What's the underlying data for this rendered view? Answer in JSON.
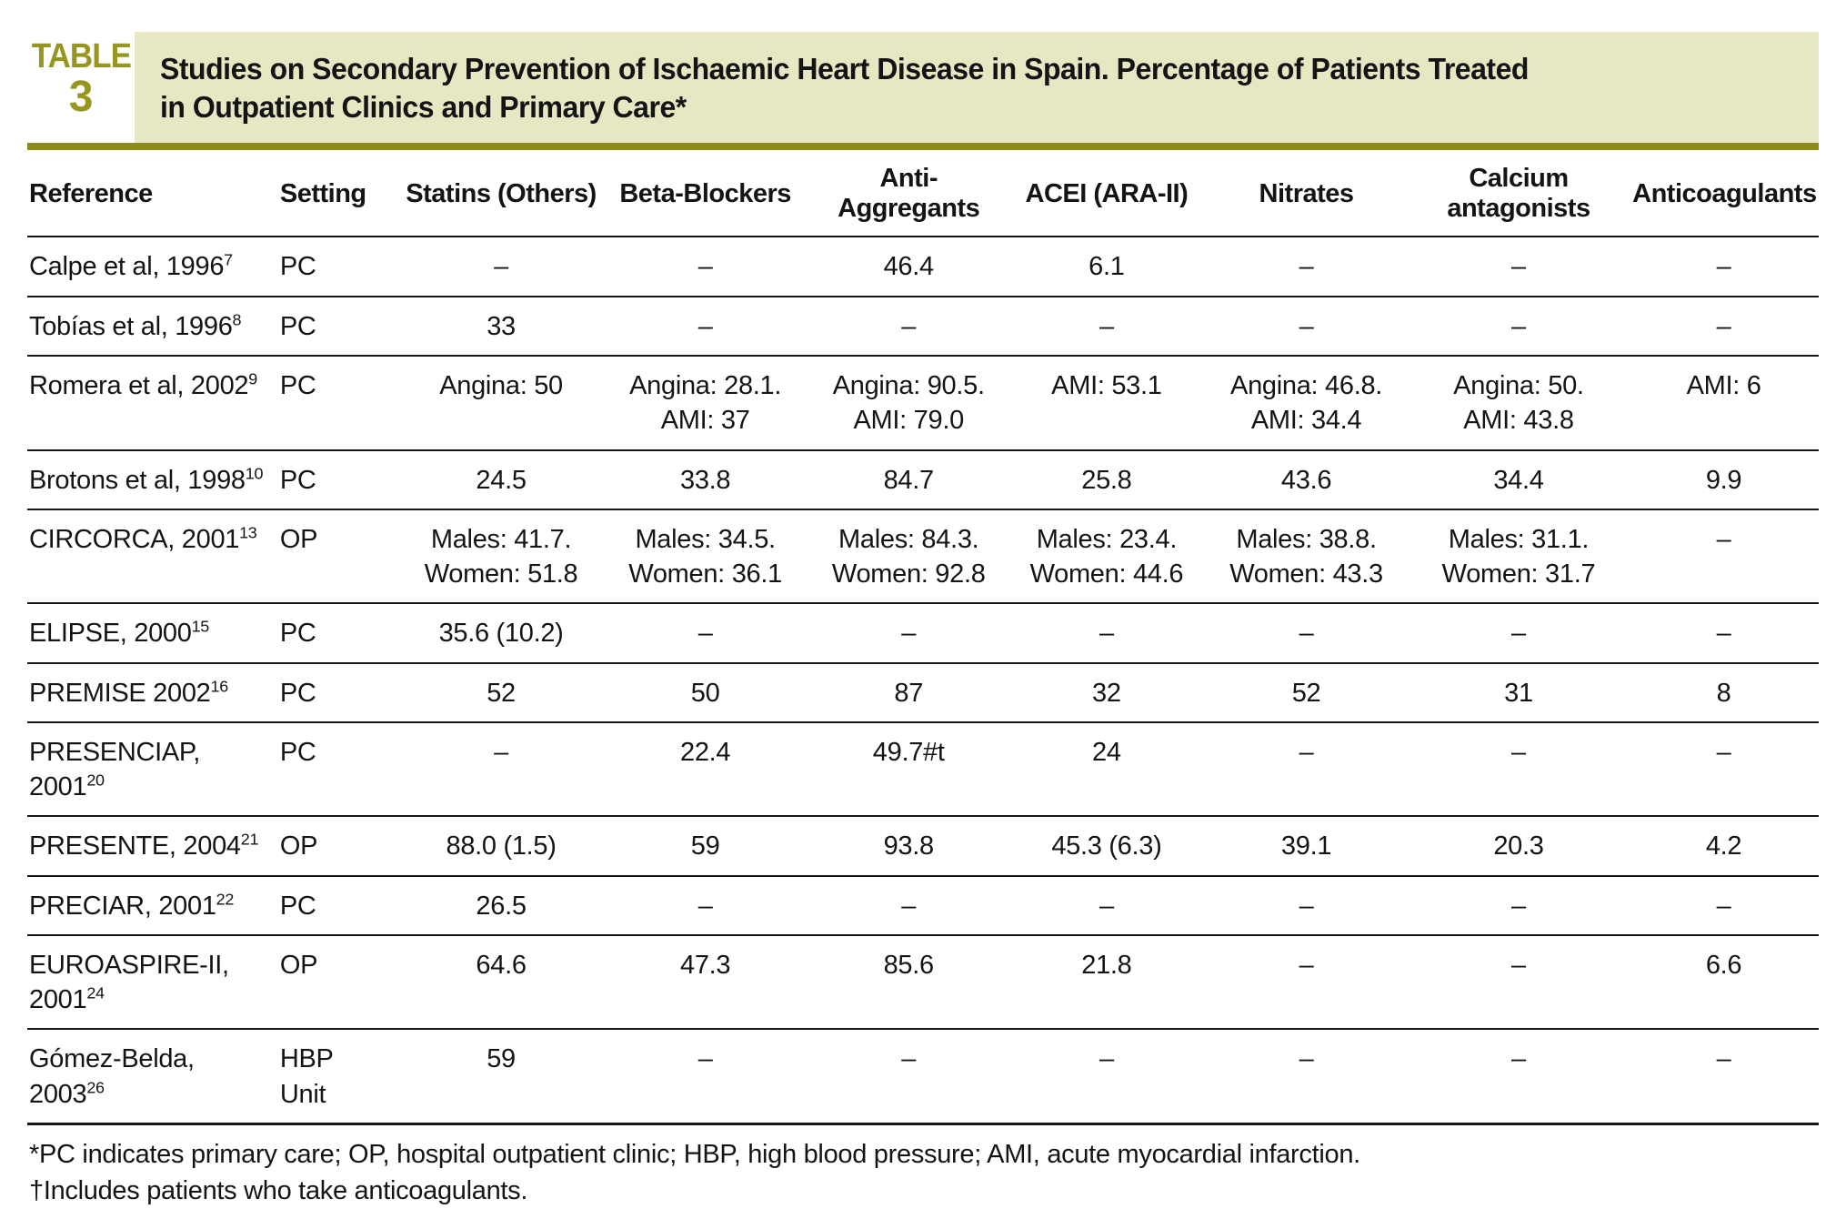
{
  "colors": {
    "accent": "#8c8c1c",
    "label_text": "#97971f",
    "title_background": "#e7e7c4",
    "rule_black": "#161616"
  },
  "table_label": {
    "word": "TABLE",
    "number": "3"
  },
  "title": {
    "line1": "Studies on Secondary Prevention of Ischaemic Heart Disease in Spain. Percentage of Patients Treated",
    "line2": "in Outpatient Clinics and Primary Care*"
  },
  "table": {
    "columns": [
      "Reference",
      "Setting",
      "Statins (Others)",
      "Beta-Blockers",
      "Anti-Aggregants",
      "ACEI (ARA-II)",
      "Nitrates",
      "Calcium antagonists",
      "Anticoagulants"
    ],
    "rows": [
      {
        "reference": "Calpe et al, 1996",
        "sup": "7",
        "setting": "PC",
        "cells": [
          "–",
          "–",
          "46.4",
          "6.1",
          "–",
          "–",
          "–"
        ]
      },
      {
        "reference": "Tobías et al, 1996",
        "sup": "8",
        "setting": "PC",
        "cells": [
          "33",
          "–",
          "–",
          "–",
          "–",
          "–",
          "–"
        ]
      },
      {
        "reference": "Romera et al, 2002",
        "sup": "9",
        "setting": "PC",
        "cells": [
          "Angina: 50",
          "Angina: 28.1.\nAMI: 37",
          "Angina: 90.5.\nAMI: 79.0",
          "AMI: 53.1",
          "Angina: 46.8.\nAMI: 34.4",
          "Angina: 50.\nAMI: 43.8",
          "AMI: 6"
        ]
      },
      {
        "reference": "Brotons et al, 1998",
        "sup": "10",
        "setting": "PC",
        "cells": [
          "24.5",
          "33.8",
          "84.7",
          "25.8",
          "43.6",
          "34.4",
          "9.9"
        ]
      },
      {
        "reference": "CIRCORCA, 2001",
        "sup": "13",
        "setting": "OP",
        "cells": [
          "Males: 41.7.\nWomen: 51.8",
          "Males: 34.5.\nWomen: 36.1",
          "Males: 84.3.\nWomen: 92.8",
          "Males: 23.4.\nWomen: 44.6",
          "Males: 38.8.\nWomen: 43.3",
          "Males: 31.1.\nWomen: 31.7",
          "–"
        ]
      },
      {
        "reference": "ELIPSE, 2000",
        "sup": "15",
        "setting": "PC",
        "cells": [
          "35.6 (10.2)",
          "–",
          "–",
          "–",
          "–",
          "–",
          "–"
        ]
      },
      {
        "reference": "PREMISE 2002",
        "sup": "16",
        "setting": "PC",
        "cells": [
          "52",
          "50",
          "87",
          "32",
          "52",
          "31",
          "8"
        ]
      },
      {
        "reference": "PRESENCIAP, 2001",
        "sup": "20",
        "setting": "PC",
        "cells": [
          "–",
          "22.4",
          "49.7#t",
          "24",
          "–",
          "–",
          "–"
        ]
      },
      {
        "reference": "PRESENTE, 2004",
        "sup": "21",
        "setting": "OP",
        "cells": [
          "88.0 (1.5)",
          "59",
          "93.8",
          "45.3 (6.3)",
          "39.1",
          "20.3",
          "4.2"
        ]
      },
      {
        "reference": "PRECIAR, 2001",
        "sup": "22",
        "setting": "PC",
        "cells": [
          "26.5",
          "–",
          "–",
          "–",
          "–",
          "–",
          "–"
        ]
      },
      {
        "reference": "EUROASPIRE-II, 2001",
        "sup": "24",
        "setting": "OP",
        "cells": [
          "64.6",
          "47.3",
          "85.6",
          "21.8",
          "–",
          "–",
          "6.6"
        ]
      },
      {
        "reference": "Gómez-Belda, 2003",
        "sup": "26",
        "setting": "HBP\nUnit",
        "cells": [
          "59",
          "–",
          "–",
          "–",
          "–",
          "–",
          "–"
        ]
      }
    ]
  },
  "footnotes": {
    "asterisk": "*PC indicates primary care; OP, hospital outpatient clinic; HBP, high blood pressure; AMI, acute myocardial infarction.",
    "dagger": "†Includes patients who take anticoagulants."
  }
}
